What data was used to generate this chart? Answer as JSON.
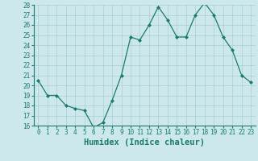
{
  "x": [
    0,
    1,
    2,
    3,
    4,
    5,
    6,
    7,
    8,
    9,
    10,
    11,
    12,
    13,
    14,
    15,
    16,
    17,
    18,
    19,
    20,
    21,
    22,
    23
  ],
  "y": [
    20.5,
    19.0,
    19.0,
    18.0,
    17.7,
    17.5,
    15.8,
    16.3,
    18.5,
    21.0,
    24.8,
    24.5,
    26.0,
    27.8,
    26.5,
    24.8,
    24.8,
    27.0,
    28.2,
    27.0,
    24.8,
    23.5,
    21.0,
    20.3
  ],
  "xlabel": "Humidex (Indice chaleur)",
  "ylim": [
    16,
    28
  ],
  "xlim": [
    -0.5,
    23.5
  ],
  "yticks": [
    16,
    17,
    18,
    19,
    20,
    21,
    22,
    23,
    24,
    25,
    26,
    27,
    28
  ],
  "xticks": [
    0,
    1,
    2,
    3,
    4,
    5,
    6,
    7,
    8,
    9,
    10,
    11,
    12,
    13,
    14,
    15,
    16,
    17,
    18,
    19,
    20,
    21,
    22,
    23
  ],
  "line_color": "#1a7a6e",
  "marker": "D",
  "marker_size": 2,
  "bg_color": "#cce8ec",
  "grid_color": "#aacfd4",
  "label_fontsize": 7.5,
  "tick_fontsize": 5.5
}
